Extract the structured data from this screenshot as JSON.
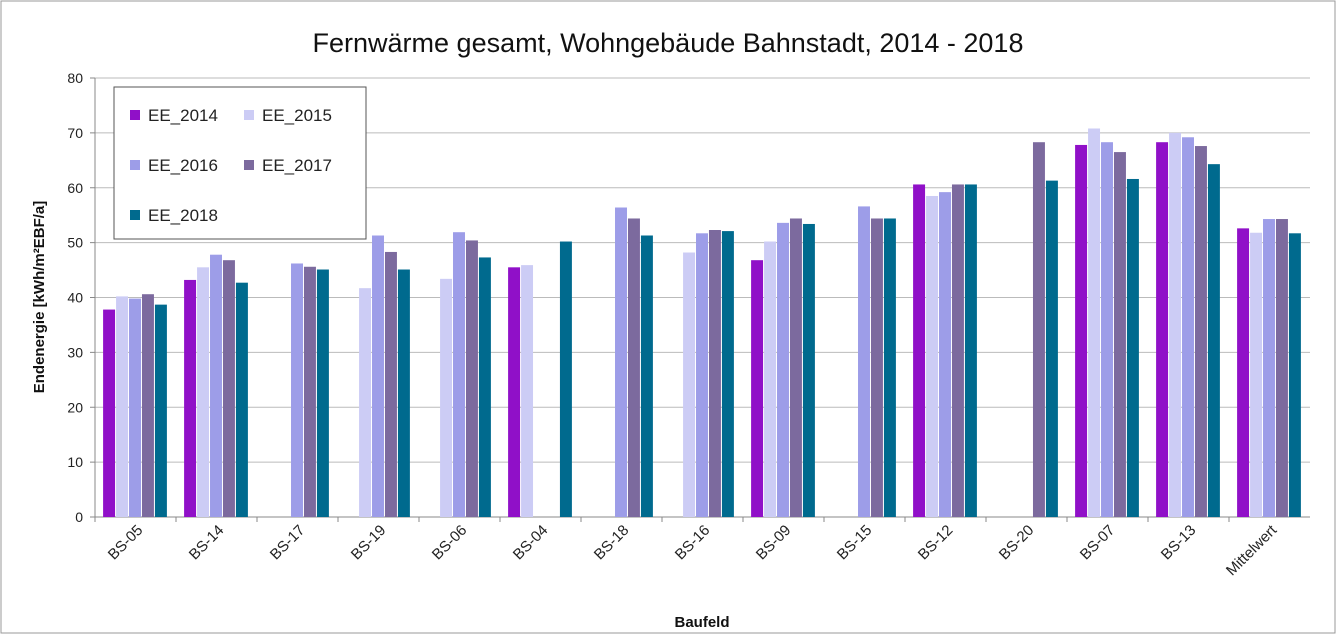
{
  "chart_data": {
    "type": "bar",
    "title": "Fernwärme gesamt, Wohngebäude Bahnstadt, 2014 - 2018",
    "y_label": "Endenergie [kWh/m²EBF/a]",
    "x_label": "Baufeld",
    "categories": [
      "BS-05",
      "BS-14",
      "BS-17",
      "BS-19",
      "BS-06",
      "BS-04",
      "BS-18",
      "BS-16",
      "BS-09",
      "BS-15",
      "BS-12",
      "BS-20",
      "BS-07",
      "BS-13",
      "Mittelwert"
    ],
    "series": [
      {
        "name": "EE_2014",
        "color": "#9010c8",
        "values": [
          37.8,
          43.2,
          null,
          null,
          null,
          45.5,
          null,
          null,
          46.8,
          null,
          60.6,
          null,
          67.8,
          68.3,
          52.6
        ]
      },
      {
        "name": "EE_2015",
        "color": "#ccccf5",
        "values": [
          40.2,
          45.5,
          null,
          41.7,
          43.4,
          45.9,
          null,
          48.2,
          50.2,
          null,
          58.5,
          null,
          70.8,
          70.0,
          51.8
        ]
      },
      {
        "name": "EE_2016",
        "color": "#9d9de8",
        "values": [
          39.8,
          47.8,
          46.2,
          51.3,
          51.9,
          null,
          56.4,
          51.7,
          53.6,
          56.6,
          59.2,
          null,
          68.3,
          69.2,
          54.3
        ]
      },
      {
        "name": "EE_2017",
        "color": "#7c6a9e",
        "values": [
          40.6,
          46.8,
          45.6,
          48.3,
          50.4,
          null,
          54.4,
          52.3,
          54.4,
          54.4,
          60.6,
          68.3,
          66.5,
          67.6,
          54.3
        ]
      },
      {
        "name": "EE_2018",
        "color": "#006a8e",
        "values": [
          38.7,
          42.7,
          45.1,
          45.1,
          47.3,
          50.2,
          51.3,
          52.1,
          53.4,
          54.4,
          60.6,
          61.3,
          61.6,
          64.3,
          51.7
        ]
      }
    ],
    "ylim": [
      0,
      80
    ],
    "yticks": [
      0,
      10,
      20,
      30,
      40,
      50,
      60,
      70,
      80
    ],
    "grid": true,
    "legend": "upper left"
  }
}
